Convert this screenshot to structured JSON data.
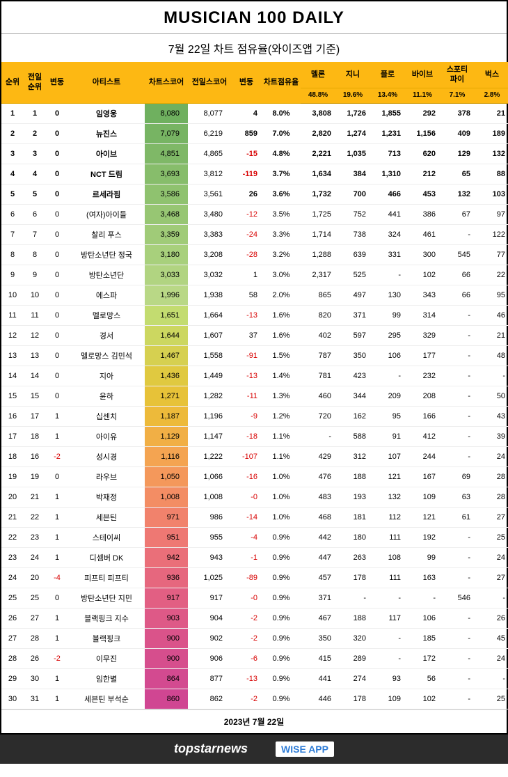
{
  "title": "MUSICIAN 100 DAILY",
  "subtitle": "7월 22일  차트 점유율(와이즈앱 기준)",
  "columns": {
    "rank": "순위",
    "prev": "전일\n순위",
    "chg": "변동",
    "artist": "아티스트",
    "score": "차트스코어",
    "prevscore": "전일스코어",
    "scorechg": "변동",
    "share": "차트점유율",
    "melon": "멜론",
    "genie": "지니",
    "flo": "플로",
    "vibe": "바이브",
    "spotify": "스포티\n파이",
    "bugs": "벅스"
  },
  "weights": {
    "melon": "48.8%",
    "genie": "19.6%",
    "flo": "13.4%",
    "vibe": "11.1%",
    "spotify": "7.1%",
    "bugs": "2.8%"
  },
  "col_widths": {
    "rank": 32,
    "prev": 32,
    "chg": 32,
    "artist": 110,
    "score": 62,
    "prevscore": 62,
    "scorechg": 44,
    "share": 56,
    "svc": 50
  },
  "score_gradient": [
    "#6fb05f",
    "#77b463",
    "#7fb867",
    "#87bd6b",
    "#8fc26f",
    "#97c673",
    "#a0cb78",
    "#a8d07c",
    "#b1d481",
    "#b9d886",
    "#c3dc70",
    "#ccd760",
    "#d6d050",
    "#e0c940",
    "#e7c238",
    "#edba3a",
    "#f1af45",
    "#f4a451",
    "#f4985b",
    "#f38d64",
    "#f1826c",
    "#ee7873",
    "#ea6f79",
    "#e6677e",
    "#e25f83",
    "#de5987",
    "#da538a",
    "#d64e8d",
    "#d34a90",
    "#d04692"
  ],
  "neg_color": "#d80000",
  "rows": [
    {
      "r": 1,
      "p": 1,
      "c": 0,
      "a": "임영웅",
      "s": "8,080",
      "ps": "8,077",
      "sc": 4,
      "sh": "8.0%",
      "m": "3,808",
      "g": "1,726",
      "f": "1,855",
      "v": "292",
      "sp": "378",
      "b": "21"
    },
    {
      "r": 2,
      "p": 2,
      "c": 0,
      "a": "뉴진스",
      "s": "7,079",
      "ps": "6,219",
      "sc": 859,
      "sh": "7.0%",
      "m": "2,820",
      "g": "1,274",
      "f": "1,231",
      "v": "1,156",
      "sp": "409",
      "b": "189"
    },
    {
      "r": 3,
      "p": 3,
      "c": 0,
      "a": "아이브",
      "s": "4,851",
      "ps": "4,865",
      "sc": -15,
      "sh": "4.8%",
      "m": "2,221",
      "g": "1,035",
      "f": "713",
      "v": "620",
      "sp": "129",
      "b": "132"
    },
    {
      "r": 4,
      "p": 4,
      "c": 0,
      "a": "NCT 드림",
      "s": "3,693",
      "ps": "3,812",
      "sc": -119,
      "sh": "3.7%",
      "m": "1,634",
      "g": "384",
      "f": "1,310",
      "v": "212",
      "sp": "65",
      "b": "88"
    },
    {
      "r": 5,
      "p": 5,
      "c": 0,
      "a": "르세라핌",
      "s": "3,586",
      "ps": "3,561",
      "sc": 26,
      "sh": "3.6%",
      "m": "1,732",
      "g": "700",
      "f": "466",
      "v": "453",
      "sp": "132",
      "b": "103"
    },
    {
      "r": 6,
      "p": 6,
      "c": 0,
      "a": "(여자)아이들",
      "s": "3,468",
      "ps": "3,480",
      "sc": -12,
      "sh": "3.5%",
      "m": "1,725",
      "g": "752",
      "f": "441",
      "v": "386",
      "sp": "67",
      "b": "97"
    },
    {
      "r": 7,
      "p": 7,
      "c": 0,
      "a": "찰리 푸스",
      "s": "3,359",
      "ps": "3,383",
      "sc": -24,
      "sh": "3.3%",
      "m": "1,714",
      "g": "738",
      "f": "324",
      "v": "461",
      "sp": "-",
      "b": "122"
    },
    {
      "r": 8,
      "p": 8,
      "c": 0,
      "a": "방탄소년단 정국",
      "s": "3,180",
      "ps": "3,208",
      "sc": -28,
      "sh": "3.2%",
      "m": "1,288",
      "g": "639",
      "f": "331",
      "v": "300",
      "sp": "545",
      "b": "77"
    },
    {
      "r": 9,
      "p": 9,
      "c": 0,
      "a": "방탄소년단",
      "s": "3,033",
      "ps": "3,032",
      "sc": 1,
      "sh": "3.0%",
      "m": "2,317",
      "g": "525",
      "f": "-",
      "v": "102",
      "sp": "66",
      "b": "22"
    },
    {
      "r": 10,
      "p": 10,
      "c": 0,
      "a": "에스파",
      "s": "1,996",
      "ps": "1,938",
      "sc": 58,
      "sh": "2.0%",
      "m": "865",
      "g": "497",
      "f": "130",
      "v": "343",
      "sp": "66",
      "b": "95"
    },
    {
      "r": 11,
      "p": 11,
      "c": 0,
      "a": "멜로망스",
      "s": "1,651",
      "ps": "1,664",
      "sc": -13,
      "sh": "1.6%",
      "m": "820",
      "g": "371",
      "f": "99",
      "v": "314",
      "sp": "-",
      "b": "46"
    },
    {
      "r": 12,
      "p": 12,
      "c": 0,
      "a": "경서",
      "s": "1,644",
      "ps": "1,607",
      "sc": 37,
      "sh": "1.6%",
      "m": "402",
      "g": "597",
      "f": "295",
      "v": "329",
      "sp": "-",
      "b": "21"
    },
    {
      "r": 13,
      "p": 13,
      "c": 0,
      "a": "멜로망스 김민석",
      "s": "1,467",
      "ps": "1,558",
      "sc": -91,
      "sh": "1.5%",
      "m": "787",
      "g": "350",
      "f": "106",
      "v": "177",
      "sp": "-",
      "b": "48"
    },
    {
      "r": 14,
      "p": 14,
      "c": 0,
      "a": "지아",
      "s": "1,436",
      "ps": "1,449",
      "sc": -13,
      "sh": "1.4%",
      "m": "781",
      "g": "423",
      "f": "-",
      "v": "232",
      "sp": "-",
      "b": "-"
    },
    {
      "r": 15,
      "p": 15,
      "c": 0,
      "a": "윤하",
      "s": "1,271",
      "ps": "1,282",
      "sc": -11,
      "sh": "1.3%",
      "m": "460",
      "g": "344",
      "f": "209",
      "v": "208",
      "sp": "-",
      "b": "50"
    },
    {
      "r": 16,
      "p": 17,
      "c": 1,
      "a": "십센치",
      "s": "1,187",
      "ps": "1,196",
      "sc": -9,
      "sh": "1.2%",
      "m": "720",
      "g": "162",
      "f": "95",
      "v": "166",
      "sp": "-",
      "b": "43"
    },
    {
      "r": 17,
      "p": 18,
      "c": 1,
      "a": "아이유",
      "s": "1,129",
      "ps": "1,147",
      "sc": -18,
      "sh": "1.1%",
      "m": "-",
      "g": "588",
      "f": "91",
      "v": "412",
      "sp": "-",
      "b": "39"
    },
    {
      "r": 18,
      "p": 16,
      "c": -2,
      "a": "성시경",
      "s": "1,116",
      "ps": "1,222",
      "sc": -107,
      "sh": "1.1%",
      "m": "429",
      "g": "312",
      "f": "107",
      "v": "244",
      "sp": "-",
      "b": "24"
    },
    {
      "r": 19,
      "p": 19,
      "c": 0,
      "a": "라우브",
      "s": "1,050",
      "ps": "1,066",
      "sc": -16,
      "sh": "1.0%",
      "m": "476",
      "g": "188",
      "f": "121",
      "v": "167",
      "sp": "69",
      "b": "28"
    },
    {
      "r": 20,
      "p": 21,
      "c": 1,
      "a": "박재정",
      "s": "1,008",
      "ps": "1,008",
      "sc": "-0",
      "sh": "1.0%",
      "m": "483",
      "g": "193",
      "f": "132",
      "v": "109",
      "sp": "63",
      "b": "28"
    },
    {
      "r": 21,
      "p": 22,
      "c": 1,
      "a": "세븐틴",
      "s": "971",
      "ps": "986",
      "sc": -14,
      "sh": "1.0%",
      "m": "468",
      "g": "181",
      "f": "112",
      "v": "121",
      "sp": "61",
      "b": "27"
    },
    {
      "r": 22,
      "p": 23,
      "c": 1,
      "a": "스테이씨",
      "s": "951",
      "ps": "955",
      "sc": -4,
      "sh": "0.9%",
      "m": "442",
      "g": "180",
      "f": "111",
      "v": "192",
      "sp": "-",
      "b": "25"
    },
    {
      "r": 23,
      "p": 24,
      "c": 1,
      "a": "디셈버 DK",
      "s": "942",
      "ps": "943",
      "sc": -1,
      "sh": "0.9%",
      "m": "447",
      "g": "263",
      "f": "108",
      "v": "99",
      "sp": "-",
      "b": "24"
    },
    {
      "r": 24,
      "p": 20,
      "c": -4,
      "a": "피프티 피프티",
      "s": "936",
      "ps": "1,025",
      "sc": -89,
      "sh": "0.9%",
      "m": "457",
      "g": "178",
      "f": "111",
      "v": "163",
      "sp": "-",
      "b": "27"
    },
    {
      "r": 25,
      "p": 25,
      "c": 0,
      "a": "방탄소년단 지민",
      "s": "917",
      "ps": "917",
      "sc": "-0",
      "sh": "0.9%",
      "m": "371",
      "g": "-",
      "f": "-",
      "v": "-",
      "sp": "546",
      "b": "-"
    },
    {
      "r": 26,
      "p": 27,
      "c": 1,
      "a": "블랙핑크 지수",
      "s": "903",
      "ps": "904",
      "sc": -2,
      "sh": "0.9%",
      "m": "467",
      "g": "188",
      "f": "117",
      "v": "106",
      "sp": "-",
      "b": "26"
    },
    {
      "r": 27,
      "p": 28,
      "c": 1,
      "a": "블랙핑크",
      "s": "900",
      "ps": "902",
      "sc": -2,
      "sh": "0.9%",
      "m": "350",
      "g": "320",
      "f": "-",
      "v": "185",
      "sp": "-",
      "b": "45"
    },
    {
      "r": 28,
      "p": 26,
      "c": -2,
      "a": "이무진",
      "s": "900",
      "ps": "906",
      "sc": -6,
      "sh": "0.9%",
      "m": "415",
      "g": "289",
      "f": "-",
      "v": "172",
      "sp": "-",
      "b": "24"
    },
    {
      "r": 29,
      "p": 30,
      "c": 1,
      "a": "임한별",
      "s": "864",
      "ps": "877",
      "sc": -13,
      "sh": "0.9%",
      "m": "441",
      "g": "274",
      "f": "93",
      "v": "56",
      "sp": "-",
      "b": "-"
    },
    {
      "r": 30,
      "p": 31,
      "c": 1,
      "a": "세븐틴 부석순",
      "s": "860",
      "ps": "862",
      "sc": -2,
      "sh": "0.9%",
      "m": "446",
      "g": "178",
      "f": "109",
      "v": "102",
      "sp": "-",
      "b": "25"
    }
  ],
  "footer_date": "2023년 7월 22일",
  "logos": {
    "topstar": "topstarnews",
    "wiseapp": "WISE APP"
  }
}
